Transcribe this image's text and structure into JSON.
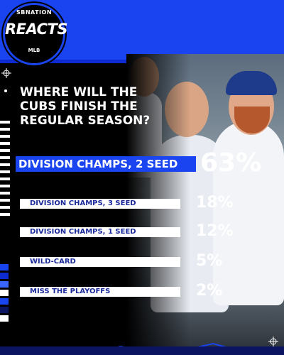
{
  "brand": {
    "logo_top": "SBNATION",
    "logo_main": "REACTS",
    "logo_bottom": "MLB"
  },
  "chart_data": {
    "type": "bar",
    "title": "WHERE WILL THE CUBS FINISH THE REGULAR SEASON?",
    "categories": [
      "DIVISION CHAMPS, 2 SEED",
      "DIVISION CHAMPS, 3 SEED",
      "DIVISION CHAMPS, 1 SEED",
      "WILD-CARD",
      "MISS THE PLAYOFFS"
    ],
    "values": [
      63,
      18,
      12,
      5,
      2
    ],
    "value_labels": [
      "63%",
      "18%",
      "12%",
      "5%",
      "2%"
    ],
    "unit": "%",
    "xlabel": "",
    "ylabel": "",
    "highlight_index": 0,
    "colors": {
      "highlight_bar": "#1a44f0",
      "bar": "#ffffff",
      "label_text": "#1a2a9a",
      "value_text": "#ffffff"
    }
  },
  "colors": {
    "brand_blue": "#1a44f0",
    "background": "#000000"
  }
}
